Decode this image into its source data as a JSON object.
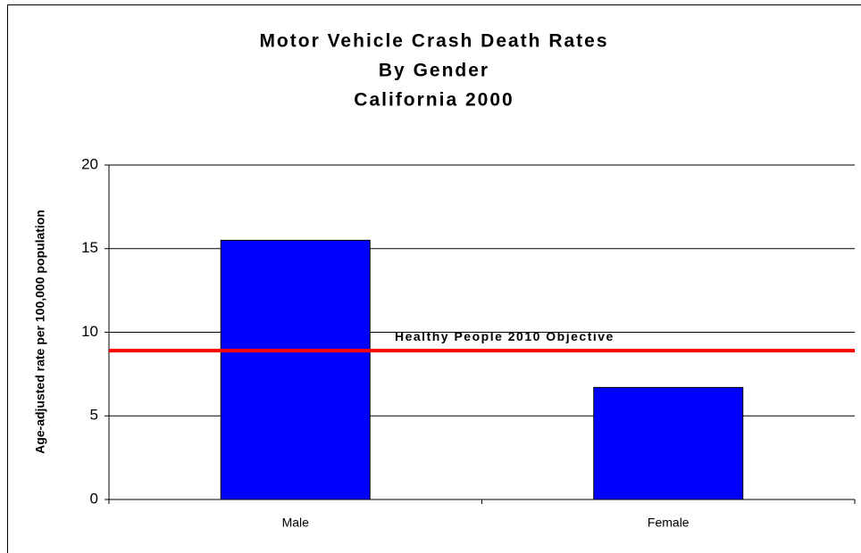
{
  "chart_data": {
    "type": "bar",
    "title": [
      "Motor Vehicle Crash Death Rates",
      "By Gender",
      "California 2000"
    ],
    "ylabel": "Age-adjusted rate per 100,000 population",
    "categories": [
      "Male",
      "Female"
    ],
    "values": [
      15.5,
      6.7
    ],
    "color": "#0000ff",
    "ylim": [
      0,
      20
    ],
    "yticks": [
      0,
      5,
      10,
      15,
      20
    ],
    "grid": true,
    "reference_line": {
      "label": "Healthy People 2010 Objective",
      "value": 8.9,
      "color": "#ff0000"
    }
  }
}
